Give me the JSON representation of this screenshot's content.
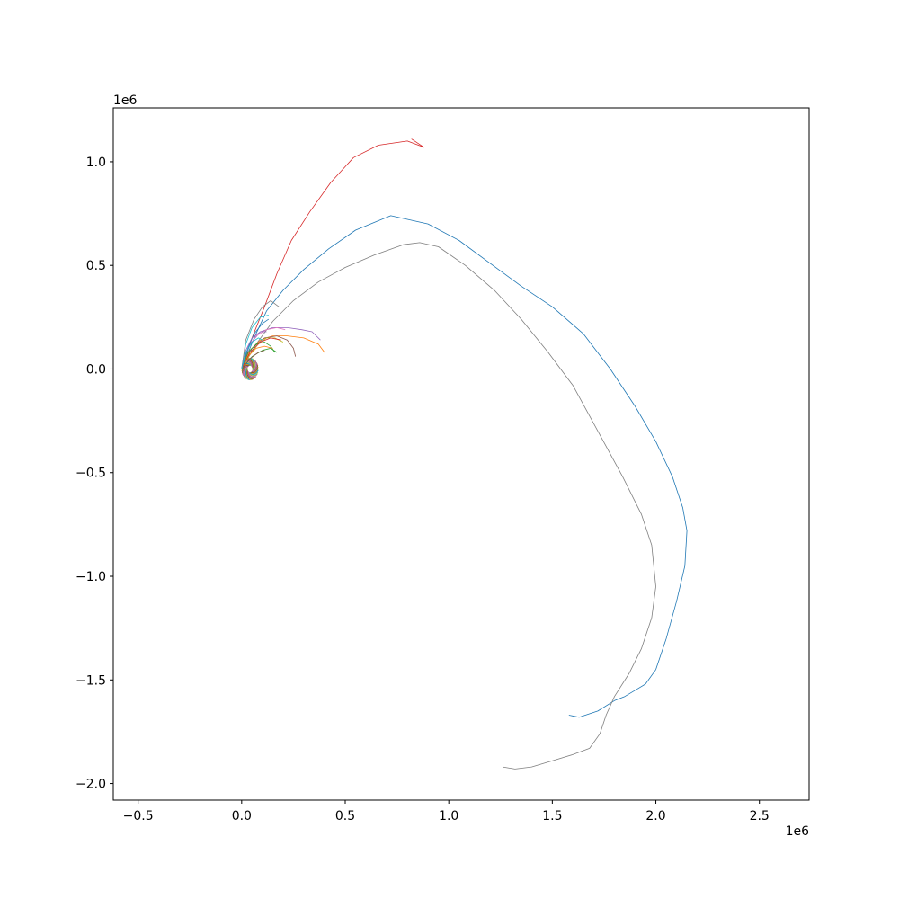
{
  "chart_data": {
    "type": "line",
    "title": "",
    "xlabel": "",
    "ylabel": "",
    "x_offset_label": "1e6",
    "y_offset_label": "1e6",
    "xlim": [
      -0.62,
      2.74
    ],
    "ylim": [
      -2.08,
      1.26
    ],
    "x_ticks": [
      -0.5,
      0.0,
      0.5,
      1.0,
      1.5,
      2.0,
      2.5
    ],
    "x_tick_labels": [
      "−0.5",
      "0.0",
      "0.5",
      "1.0",
      "1.5",
      "2.0",
      "2.5"
    ],
    "y_ticks": [
      -2.0,
      -1.5,
      -1.0,
      -0.5,
      0.0,
      0.5,
      1.0
    ],
    "y_tick_labels": [
      "−2.0",
      "−1.5",
      "−1.0",
      "−0.5",
      "0.0",
      "0.5",
      "1.0"
    ],
    "grid": false,
    "legend": "none",
    "colors": [
      "#1f77b4",
      "#ff7f0e",
      "#2ca02c",
      "#d62728",
      "#9467bd",
      "#8c564b",
      "#e377c2",
      "#7f7f7f",
      "#bcbd22",
      "#17becf"
    ],
    "series": [
      {
        "color": "#1f77b4",
        "x": [
          0.0,
          0.06,
          0.12,
          0.2,
          0.3,
          0.42,
          0.55,
          0.72,
          0.9,
          1.05,
          1.2,
          1.35,
          1.5,
          1.65,
          1.78,
          1.9,
          2.0,
          2.08,
          2.13,
          2.15,
          2.14,
          2.1,
          2.05,
          2.0,
          1.95,
          1.9,
          1.85,
          1.8,
          1.72,
          1.63,
          1.58
        ],
        "y": [
          0.0,
          0.15,
          0.28,
          0.38,
          0.48,
          0.58,
          0.67,
          0.74,
          0.7,
          0.62,
          0.51,
          0.4,
          0.3,
          0.17,
          0.0,
          -0.18,
          -0.35,
          -0.52,
          -0.67,
          -0.78,
          -0.95,
          -1.12,
          -1.3,
          -1.45,
          -1.52,
          -1.55,
          -1.58,
          -1.6,
          -1.65,
          -1.68,
          -1.67
        ]
      },
      {
        "color": "#7f7f7f",
        "x": [
          0.0,
          0.07,
          0.15,
          0.25,
          0.37,
          0.5,
          0.64,
          0.78,
          0.86,
          0.95,
          1.08,
          1.22,
          1.35,
          1.48,
          1.6,
          1.72,
          1.84,
          1.93,
          1.98,
          2.0,
          1.98,
          1.93,
          1.87,
          1.8,
          1.76,
          1.73,
          1.68,
          1.6,
          1.5,
          1.4,
          1.32,
          1.26
        ],
        "y": [
          0.0,
          0.12,
          0.23,
          0.33,
          0.42,
          0.49,
          0.55,
          0.6,
          0.61,
          0.59,
          0.5,
          0.38,
          0.24,
          0.08,
          -0.08,
          -0.3,
          -0.52,
          -0.7,
          -0.85,
          -1.05,
          -1.2,
          -1.35,
          -1.47,
          -1.58,
          -1.67,
          -1.76,
          -1.83,
          -1.86,
          -1.89,
          -1.92,
          -1.93,
          -1.92
        ]
      },
      {
        "color": "#d62728",
        "x": [
          0.0,
          0.05,
          0.11,
          0.17,
          0.24,
          0.33,
          0.43,
          0.54,
          0.66,
          0.8,
          0.88,
          0.85,
          0.82
        ],
        "y": [
          0.0,
          0.15,
          0.3,
          0.46,
          0.62,
          0.76,
          0.9,
          1.02,
          1.08,
          1.1,
          1.07,
          1.09,
          1.11
        ]
      },
      {
        "color": "#ff7f0e",
        "x": [
          0.0,
          0.04,
          0.09,
          0.15,
          0.22,
          0.3,
          0.37,
          0.4
        ],
        "y": [
          0.0,
          0.09,
          0.14,
          0.16,
          0.16,
          0.15,
          0.12,
          0.08
        ]
      },
      {
        "color": "#9467bd",
        "x": [
          0.0,
          0.04,
          0.09,
          0.15,
          0.22,
          0.29,
          0.34,
          0.38
        ],
        "y": [
          0.0,
          0.12,
          0.18,
          0.2,
          0.2,
          0.19,
          0.18,
          0.14
        ]
      },
      {
        "color": "#8c564b",
        "x": [
          0.0,
          0.05,
          0.11,
          0.17,
          0.22,
          0.25,
          0.26
        ],
        "y": [
          0.0,
          0.1,
          0.15,
          0.16,
          0.14,
          0.1,
          0.06
        ]
      },
      {
        "color": "#2ca02c",
        "x": [
          0.0,
          0.03,
          0.07,
          0.11,
          0.14,
          0.16
        ],
        "y": [
          0.0,
          0.08,
          0.12,
          0.13,
          0.11,
          0.08
        ]
      },
      {
        "color": "#17becf",
        "x": [
          0.0,
          0.02,
          0.05,
          0.09,
          0.13
        ],
        "y": [
          0.0,
          0.12,
          0.2,
          0.25,
          0.26
        ]
      },
      {
        "color": "#7f7f7f",
        "x": [
          0.0,
          0.02,
          0.06,
          0.1,
          0.14,
          0.18
        ],
        "y": [
          0.0,
          0.14,
          0.24,
          0.3,
          0.33,
          0.3
        ]
      },
      {
        "color": "#bcbd22",
        "x": [
          0.0,
          0.04,
          0.08,
          0.12,
          0.16,
          0.2
        ],
        "y": [
          0.0,
          0.07,
          0.12,
          0.15,
          0.15,
          0.13
        ]
      },
      {
        "color": "#e377c2",
        "x": [
          0.0,
          0.03,
          0.07,
          0.12,
          0.17,
          0.21
        ],
        "y": [
          0.0,
          0.1,
          0.16,
          0.19,
          0.2,
          0.19
        ]
      },
      {
        "color": "#1f77b4",
        "x": [
          0.0,
          0.03,
          0.06,
          0.1,
          0.13
        ],
        "y": [
          0.0,
          0.1,
          0.17,
          0.22,
          0.24
        ]
      },
      {
        "color": "#ff7f0e",
        "x": [
          0.0,
          0.03,
          0.07,
          0.11,
          0.15
        ],
        "y": [
          0.0,
          0.06,
          0.1,
          0.11,
          0.1
        ]
      },
      {
        "color": "#2ca02c",
        "x": [
          0.0,
          0.05,
          0.1,
          0.14,
          0.17
        ],
        "y": [
          0.0,
          0.06,
          0.09,
          0.1,
          0.08
        ]
      },
      {
        "color": "#d62728",
        "x": [
          0.0,
          0.04,
          0.09,
          0.14,
          0.19
        ],
        "y": [
          0.0,
          0.08,
          0.13,
          0.15,
          0.14
        ]
      },
      {
        "color": "#9467bd",
        "x": [
          0.0,
          0.02,
          0.05,
          0.09,
          0.12
        ],
        "y": [
          0.0,
          0.09,
          0.15,
          0.18,
          0.18
        ]
      },
      {
        "color": "#8c564b",
        "x": [
          0.0,
          0.04,
          0.08,
          0.11
        ],
        "y": [
          0.0,
          0.05,
          0.08,
          0.09
        ]
      },
      {
        "color": "#17becf",
        "x": [
          0.0,
          0.02,
          0.05,
          0.08,
          0.1
        ],
        "y": [
          0.0,
          0.08,
          0.13,
          0.15,
          0.14
        ]
      }
    ],
    "spiral": {
      "center": [
        0.04,
        0.0
      ],
      "radius": 0.045,
      "strands": 40,
      "strand_length": 0.06
    }
  }
}
